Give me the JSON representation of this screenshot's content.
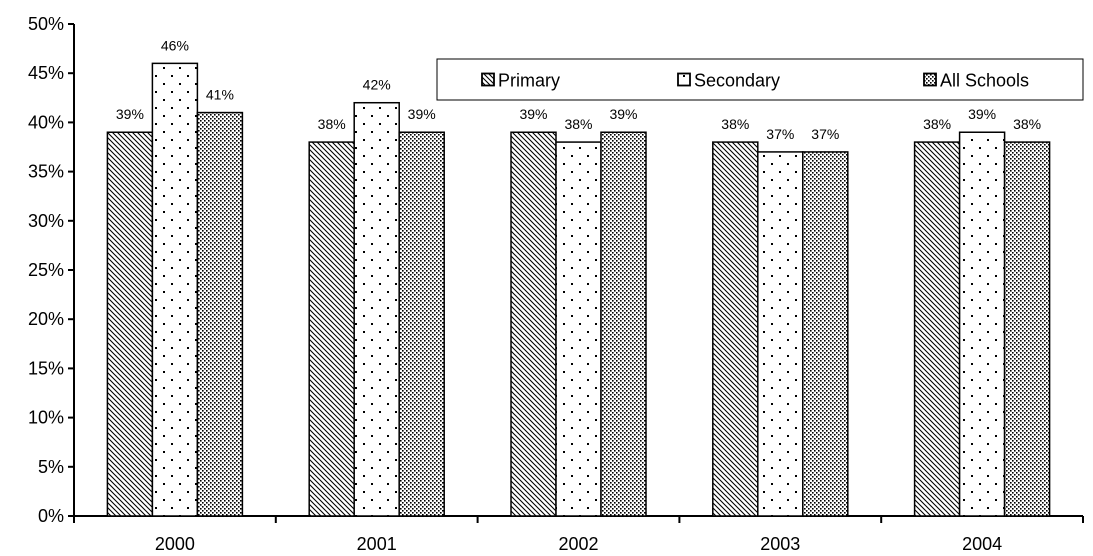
{
  "chart_data": {
    "type": "bar",
    "categories": [
      "2000",
      "2001",
      "2002",
      "2003",
      "2004"
    ],
    "series": [
      {
        "name": "Primary",
        "values": [
          39,
          38,
          39,
          38,
          38
        ],
        "labels": [
          "39%",
          "38%",
          "39%",
          "38%",
          "38%"
        ],
        "pattern": "diagonal-hatch"
      },
      {
        "name": "Secondary",
        "values": [
          46,
          42,
          38,
          37,
          39
        ],
        "labels": [
          "46%",
          "42%",
          "38%",
          "37%",
          "39%"
        ],
        "pattern": "sparse-dots"
      },
      {
        "name": "All Schools",
        "values": [
          41,
          39,
          39,
          37,
          38
        ],
        "labels": [
          "41%",
          "39%",
          "39%",
          "37%",
          "38%"
        ],
        "pattern": "dense-dots"
      }
    ],
    "y_ticks": [
      "0%",
      "5%",
      "10%",
      "15%",
      "20%",
      "25%",
      "30%",
      "35%",
      "40%",
      "45%",
      "50%"
    ],
    "ylim": [
      0,
      50
    ],
    "grid": false,
    "legend_position": "top-right"
  }
}
